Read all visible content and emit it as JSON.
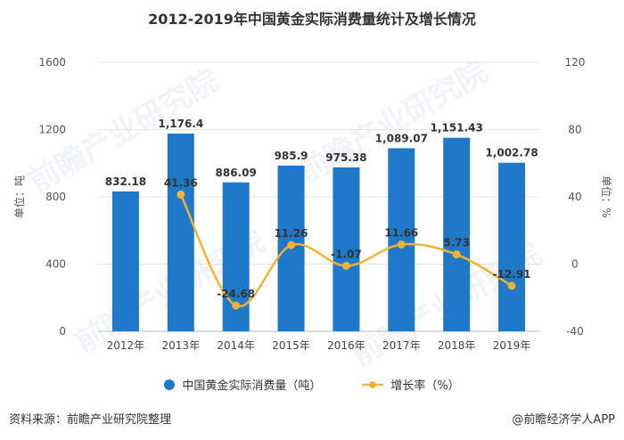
{
  "chart_data": {
    "type": "bar",
    "title": "2012-2019年中国黄金实际消费量统计及增长情况",
    "categories": [
      "2012年",
      "2013年",
      "2014年",
      "2015年",
      "2016年",
      "2017年",
      "2018年",
      "2019年"
    ],
    "series": [
      {
        "name": "中国黄金实际消费量（吨）",
        "type": "bar",
        "axis": "left",
        "values": [
          832.18,
          1176.4,
          886.09,
          985.9,
          975.38,
          1089.07,
          1151.43,
          1002.78
        ],
        "labels": [
          "832.18",
          "1,176.4",
          "886.09",
          "985.9",
          "975.38",
          "1,089.07",
          "1,151.43",
          "1,002.78"
        ]
      },
      {
        "name": "增长率（%）",
        "type": "line",
        "axis": "right",
        "values": [
          null,
          41.36,
          -24.68,
          11.26,
          -1.07,
          11.66,
          5.73,
          -12.91
        ],
        "labels": [
          "",
          "41.36",
          "-24.68",
          "11.26",
          "-1.07",
          "11.66",
          "5.73",
          "-12.91"
        ]
      }
    ],
    "left_axis": {
      "label": "单位：吨",
      "range": [
        0,
        1600
      ],
      "ticks": [
        0,
        400,
        800,
        1200,
        1600
      ]
    },
    "right_axis": {
      "label": "单位：%",
      "range": [
        -40,
        120
      ],
      "ticks": [
        -40,
        0,
        40,
        80,
        120
      ]
    },
    "legend_position": "bottom-center",
    "grid": true,
    "colors": {
      "bar": "#1f78c8",
      "line": "#f2b233",
      "grid": "#e3e3e3"
    }
  },
  "footer": {
    "source": "资料来源：前瞻产业研究院整理",
    "app": "@前瞻经济学人APP"
  },
  "watermark": {
    "text": "前瞻产业研究院"
  }
}
